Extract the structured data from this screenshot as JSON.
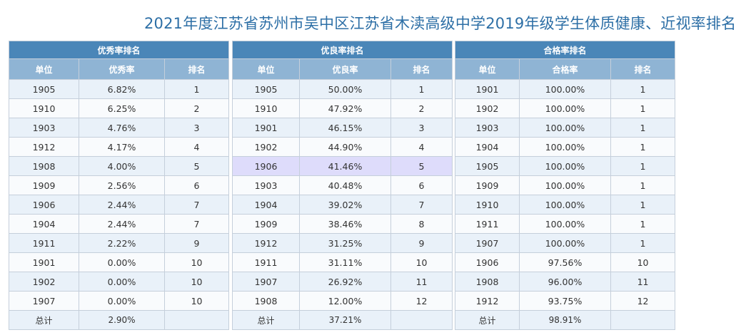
{
  "page_title": "2021年度江苏省苏州市吴中区江苏省木渎高级中学2019年级学生体质健康、近视率排名",
  "tables": [
    {
      "caption": "优秀率排名",
      "headers": [
        "单位",
        "优秀率",
        "排名"
      ],
      "rows": [
        [
          "1905",
          "6.82%",
          "1"
        ],
        [
          "1910",
          "6.25%",
          "2"
        ],
        [
          "1903",
          "4.76%",
          "3"
        ],
        [
          "1912",
          "4.17%",
          "4"
        ],
        [
          "1908",
          "4.00%",
          "5"
        ],
        [
          "1909",
          "2.56%",
          "6"
        ],
        [
          "1906",
          "2.44%",
          "7"
        ],
        [
          "1904",
          "2.44%",
          "7"
        ],
        [
          "1911",
          "2.22%",
          "9"
        ],
        [
          "1901",
          "0.00%",
          "10"
        ],
        [
          "1902",
          "0.00%",
          "10"
        ],
        [
          "1907",
          "0.00%",
          "10"
        ]
      ],
      "total": [
        "总计",
        "2.90%",
        ""
      ]
    },
    {
      "caption": "优良率排名",
      "headers": [
        "单位",
        "优良率",
        "排名"
      ],
      "rows": [
        [
          "1905",
          "50.00%",
          "1"
        ],
        [
          "1910",
          "47.92%",
          "2"
        ],
        [
          "1901",
          "46.15%",
          "3"
        ],
        [
          "1902",
          "44.90%",
          "4"
        ],
        [
          "1906",
          "41.46%",
          "5"
        ],
        [
          "1903",
          "40.48%",
          "6"
        ],
        [
          "1904",
          "39.02%",
          "7"
        ],
        [
          "1909",
          "38.46%",
          "8"
        ],
        [
          "1912",
          "31.25%",
          "9"
        ],
        [
          "1911",
          "31.11%",
          "10"
        ],
        [
          "1907",
          "26.92%",
          "11"
        ],
        [
          "1908",
          "12.00%",
          "12"
        ]
      ],
      "total": [
        "总计",
        "37.21%",
        ""
      ],
      "highlighted_row": "1906"
    },
    {
      "caption": "合格率排名",
      "headers": [
        "单位",
        "合格率",
        "排名"
      ],
      "rows": [
        [
          "1901",
          "100.00%",
          "1"
        ],
        [
          "1902",
          "100.00%",
          "1"
        ],
        [
          "1903",
          "100.00%",
          "1"
        ],
        [
          "1904",
          "100.00%",
          "1"
        ],
        [
          "1905",
          "100.00%",
          "1"
        ],
        [
          "1909",
          "100.00%",
          "1"
        ],
        [
          "1910",
          "100.00%",
          "1"
        ],
        [
          "1911",
          "100.00%",
          "1"
        ],
        [
          "1907",
          "100.00%",
          "1"
        ],
        [
          "1906",
          "97.56%",
          "10"
        ],
        [
          "1908",
          "96.00%",
          "11"
        ],
        [
          "1912",
          "93.75%",
          "12"
        ]
      ],
      "total": [
        "总计",
        "98.91%",
        ""
      ]
    }
  ],
  "colors": {
    "title": "#2d6fa6",
    "caption_bg": "#4a86b8",
    "header_bg": "#8fb4d4",
    "row_odd": "#e9f1f9",
    "row_even": "#f9fbfd",
    "row_highlight": "#dedcfb"
  }
}
